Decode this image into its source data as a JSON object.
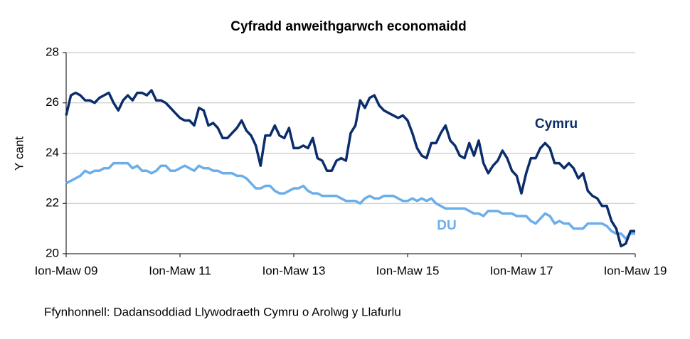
{
  "chart_data": {
    "type": "line",
    "title": "Cyfradd anweithgarwch economaidd",
    "y_label": "Y cant",
    "source": "Ffynhonnell: Dadansoddiad Llywodraeth Cymru o Arolwg y Llafurlu",
    "categories": [
      "Ion-Maw 09",
      null,
      null,
      null,
      null,
      null,
      null,
      null,
      null,
      null,
      null,
      null,
      null,
      null,
      null,
      null,
      null,
      null,
      null,
      null,
      null,
      null,
      null,
      null,
      "Ion-Maw 11",
      null,
      null,
      null,
      null,
      null,
      null,
      null,
      null,
      null,
      null,
      null,
      null,
      null,
      null,
      null,
      null,
      null,
      null,
      null,
      null,
      null,
      null,
      null,
      "Ion-Maw 13",
      null,
      null,
      null,
      null,
      null,
      null,
      null,
      null,
      null,
      null,
      null,
      null,
      null,
      null,
      null,
      null,
      null,
      null,
      null,
      null,
      null,
      null,
      null,
      "Ion-Maw 15",
      null,
      null,
      null,
      null,
      null,
      null,
      null,
      null,
      null,
      null,
      null,
      null,
      null,
      null,
      null,
      null,
      null,
      null,
      null,
      null,
      null,
      null,
      null,
      "Ion-Maw 17",
      null,
      null,
      null,
      null,
      null,
      null,
      null,
      null,
      null,
      null,
      null,
      null,
      null,
      null,
      null,
      null,
      null,
      null,
      null,
      null,
      null,
      null,
      null,
      "Ion-Maw 19"
    ],
    "series": [
      {
        "name": "Cymru",
        "color": "#0b2d6b",
        "values": [
          25.5,
          26.3,
          26.4,
          26.3,
          26.1,
          26.1,
          26.0,
          26.2,
          26.3,
          26.4,
          26.0,
          25.7,
          26.1,
          26.3,
          26.1,
          26.4,
          26.4,
          26.3,
          26.5,
          26.1,
          26.1,
          26.0,
          25.8,
          25.6,
          25.4,
          25.3,
          25.3,
          25.1,
          25.8,
          25.7,
          25.1,
          25.2,
          25.0,
          24.6,
          24.6,
          24.8,
          25.0,
          25.3,
          24.9,
          24.7,
          24.3,
          23.5,
          24.7,
          24.7,
          25.1,
          24.7,
          24.6,
          25.0,
          24.2,
          24.2,
          24.3,
          24.2,
          24.6,
          23.8,
          23.7,
          23.3,
          23.3,
          23.7,
          23.8,
          23.7,
          24.8,
          25.1,
          26.1,
          25.8,
          26.2,
          26.3,
          25.9,
          25.7,
          25.6,
          25.5,
          25.4,
          25.5,
          25.3,
          24.8,
          24.2,
          23.9,
          23.8,
          24.4,
          24.4,
          24.8,
          25.1,
          24.5,
          24.3,
          23.9,
          23.8,
          24.4,
          23.9,
          24.5,
          23.6,
          23.2,
          23.5,
          23.7,
          24.1,
          23.8,
          23.3,
          23.1,
          22.4,
          23.2,
          23.8,
          23.8,
          24.2,
          24.4,
          24.2,
          23.6,
          23.6,
          23.4,
          23.6,
          23.4,
          23.0,
          23.2,
          22.5,
          22.3,
          22.2,
          21.9,
          21.9,
          21.3,
          21.0,
          20.3,
          20.4,
          20.9,
          20.9
        ]
      },
      {
        "name": "DU",
        "color": "#6aaeea",
        "values": [
          22.8,
          22.9,
          23.0,
          23.1,
          23.3,
          23.2,
          23.3,
          23.3,
          23.4,
          23.4,
          23.6,
          23.6,
          23.6,
          23.6,
          23.4,
          23.5,
          23.3,
          23.3,
          23.2,
          23.3,
          23.5,
          23.5,
          23.3,
          23.3,
          23.4,
          23.5,
          23.4,
          23.3,
          23.5,
          23.4,
          23.4,
          23.3,
          23.3,
          23.2,
          23.2,
          23.2,
          23.1,
          23.1,
          23.0,
          22.8,
          22.6,
          22.6,
          22.7,
          22.7,
          22.5,
          22.4,
          22.4,
          22.5,
          22.6,
          22.6,
          22.7,
          22.5,
          22.4,
          22.4,
          22.3,
          22.3,
          22.3,
          22.3,
          22.2,
          22.1,
          22.1,
          22.1,
          22.0,
          22.2,
          22.3,
          22.2,
          22.2,
          22.3,
          22.3,
          22.3,
          22.2,
          22.1,
          22.1,
          22.2,
          22.1,
          22.2,
          22.1,
          22.2,
          22.0,
          21.9,
          21.8,
          21.8,
          21.8,
          21.8,
          21.8,
          21.7,
          21.6,
          21.6,
          21.5,
          21.7,
          21.7,
          21.7,
          21.6,
          21.6,
          21.6,
          21.5,
          21.5,
          21.5,
          21.3,
          21.2,
          21.4,
          21.6,
          21.5,
          21.2,
          21.3,
          21.2,
          21.2,
          21.0,
          21.0,
          21.0,
          21.2,
          21.2,
          21.2,
          21.2,
          21.1,
          20.9,
          20.8,
          20.8,
          20.6,
          20.8,
          20.8
        ]
      }
    ],
    "ylim": [
      20,
      28
    ],
    "yticks": [
      20,
      22,
      24,
      26,
      28
    ],
    "grid": true
  }
}
